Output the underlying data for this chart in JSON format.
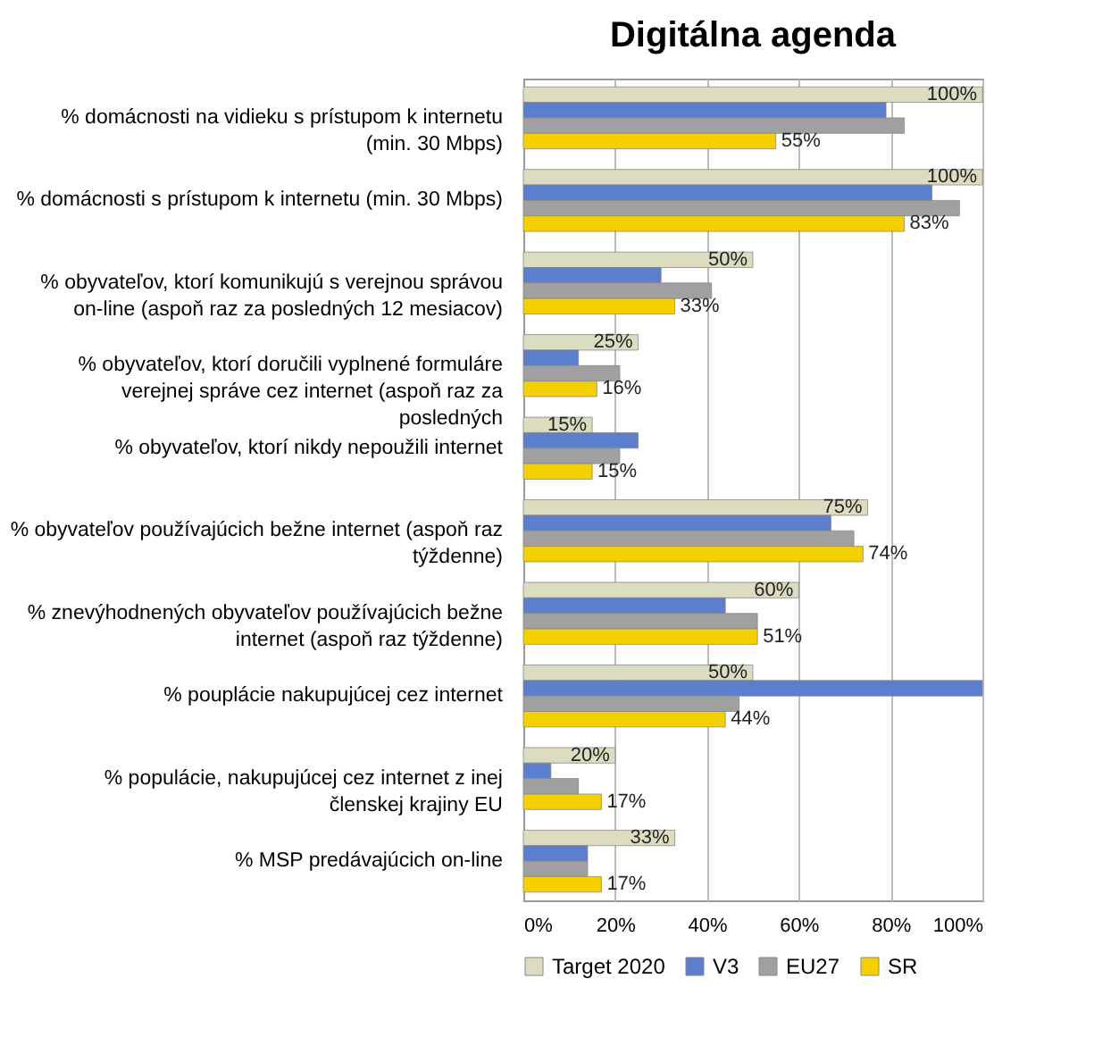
{
  "chart_data": {
    "type": "bar",
    "orientation": "horizontal",
    "title": "Digitálna agenda",
    "categories": [
      "% domácnosti na vidieku s prístupom k internetu (min. 30 Mbps)",
      "% domácnosti s prístupom k internetu (min. 30 Mbps)",
      "% obyvateľov, ktorí komunikujú s verejnou správou on-line (aspoň raz za posledných 12 mesiacov)",
      "% obyvateľov, ktorí doručili vyplnené formuláre verejnej správe cez internet (aspoň raz za posledných",
      "% obyvateľov, ktorí nikdy nepoužili internet",
      "% obyvateľov používajúcich bežne internet (aspoň raz týždenne)",
      "% znevýhodnených obyvateľov používajúcich bežne internet (aspoň raz týždenne)",
      "% pouplácie nakupujúcej cez internet",
      "% populácie, nakupujúcej cez internet z inej členskej krajiny EU",
      "% MSP predávajúcich on-line"
    ],
    "series": [
      {
        "name": "Target 2020",
        "color": "#dcdcc0",
        "values": [
          100,
          100,
          50,
          25,
          15,
          75,
          60,
          50,
          20,
          33
        ],
        "value_labels": [
          "100%",
          "100%",
          "50%",
          "25%",
          "15%",
          "75%",
          "60%",
          "50%",
          "20%",
          "33%"
        ]
      },
      {
        "name": "V3",
        "color": "#5b7fcc",
        "values": [
          79,
          89,
          30,
          12,
          25,
          67,
          44,
          100,
          6,
          14
        ]
      },
      {
        "name": "EU27",
        "color": "#a0a0a0",
        "values": [
          83,
          95,
          41,
          21,
          21,
          72,
          51,
          47,
          12,
          14
        ]
      },
      {
        "name": "SR",
        "color": "#f5d000",
        "values": [
          55,
          83,
          33,
          16,
          15,
          74,
          51,
          44,
          17,
          17
        ],
        "value_labels": [
          "55%",
          "83%",
          "33%",
          "16%",
          "15%",
          "74%",
          "51%",
          "44%",
          "17%",
          "17%"
        ]
      }
    ],
    "xlim": [
      0,
      100
    ],
    "xticks": [
      {
        "value": 0,
        "label": "0%"
      },
      {
        "value": 20,
        "label": "20%"
      },
      {
        "value": 40,
        "label": "40%"
      },
      {
        "value": 60,
        "label": "60%"
      },
      {
        "value": 80,
        "label": "80%"
      },
      {
        "value": 100,
        "label": "100%"
      }
    ],
    "grid": "x",
    "legend": "bottom"
  }
}
